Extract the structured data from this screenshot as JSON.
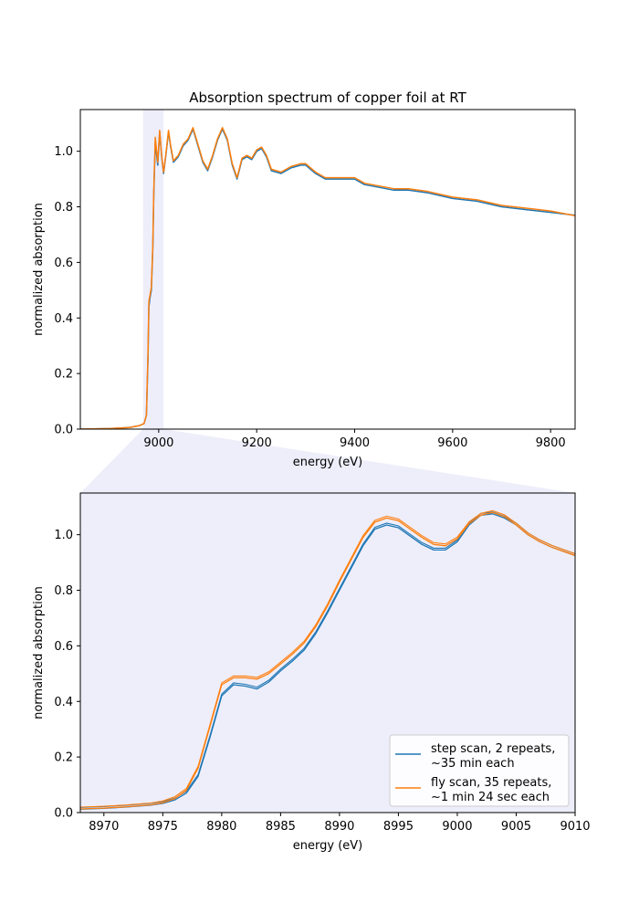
{
  "colors": {
    "step": "#1f77b4",
    "fly": "#ff7f0e",
    "zoom_region": "#eeeefb"
  },
  "chart_data": [
    {
      "type": "line",
      "title": "Absorption spectrum of copper foil at RT",
      "xlabel": "energy (eV)",
      "ylabel": "normalized absorption",
      "xlim": [
        8840,
        9850
      ],
      "ylim": [
        0,
        1.15
      ],
      "xticks": [
        9000,
        9200,
        9400,
        9600,
        9800
      ],
      "yticks": [
        0.0,
        0.2,
        0.4,
        0.6,
        0.8,
        1.0
      ],
      "xtick_labels": [
        "9000",
        "9200",
        "9400",
        "9600",
        "9800"
      ],
      "ytick_labels": [
        "0.0",
        "0.2",
        "0.4",
        "0.6",
        "0.8",
        "1.0"
      ],
      "grid": false,
      "highlight_span": [
        8968,
        9010
      ],
      "series": [
        {
          "name": "step scan, 2 repeats, ~35 min each",
          "color": "step",
          "x": [
            8840,
            8900,
            8940,
            8960,
            8970,
            8975,
            8978,
            8980,
            8982,
            8985,
            8988,
            8990,
            8993,
            8998,
            9002,
            9006,
            9010,
            9015,
            9020,
            9024,
            9030,
            9040,
            9050,
            9060,
            9070,
            9080,
            9090,
            9100,
            9110,
            9120,
            9130,
            9140,
            9150,
            9160,
            9170,
            9180,
            9190,
            9200,
            9210,
            9220,
            9230,
            9250,
            9270,
            9290,
            9300,
            9320,
            9340,
            9360,
            9380,
            9400,
            9420,
            9450,
            9480,
            9510,
            9550,
            9600,
            9650,
            9700,
            9750,
            9800,
            9850
          ],
          "y": [
            0.0,
            0.002,
            0.006,
            0.012,
            0.02,
            0.05,
            0.25,
            0.44,
            0.47,
            0.5,
            0.65,
            0.85,
            1.03,
            0.95,
            1.07,
            0.98,
            0.92,
            0.99,
            1.07,
            1.02,
            0.96,
            0.98,
            1.02,
            1.04,
            1.08,
            1.02,
            0.96,
            0.93,
            0.98,
            1.04,
            1.08,
            1.04,
            0.95,
            0.9,
            0.97,
            0.98,
            0.97,
            1.0,
            1.01,
            0.98,
            0.93,
            0.92,
            0.94,
            0.95,
            0.95,
            0.92,
            0.9,
            0.9,
            0.9,
            0.9,
            0.88,
            0.87,
            0.86,
            0.86,
            0.85,
            0.83,
            0.82,
            0.8,
            0.79,
            0.78,
            0.77
          ]
        },
        {
          "name": "fly scan, 35 repeats, ~1 min 24 sec each",
          "color": "fly",
          "x": [
            8840,
            8900,
            8940,
            8960,
            8970,
            8975,
            8978,
            8980,
            8982,
            8985,
            8988,
            8990,
            8993,
            8998,
            9002,
            9006,
            9010,
            9015,
            9020,
            9024,
            9030,
            9040,
            9050,
            9060,
            9070,
            9080,
            9090,
            9100,
            9110,
            9120,
            9130,
            9140,
            9150,
            9160,
            9170,
            9180,
            9190,
            9200,
            9210,
            9220,
            9230,
            9250,
            9270,
            9290,
            9300,
            9320,
            9340,
            9360,
            9380,
            9400,
            9420,
            9450,
            9480,
            9510,
            9550,
            9600,
            9650,
            9700,
            9750,
            9800,
            9850
          ],
          "y": [
            0.0,
            0.002,
            0.006,
            0.012,
            0.02,
            0.05,
            0.27,
            0.46,
            0.48,
            0.51,
            0.66,
            0.86,
            1.05,
            0.96,
            1.075,
            0.985,
            0.925,
            0.995,
            1.075,
            1.025,
            0.965,
            0.985,
            1.025,
            1.045,
            1.085,
            1.025,
            0.965,
            0.935,
            0.985,
            1.045,
            1.085,
            1.045,
            0.955,
            0.905,
            0.975,
            0.985,
            0.975,
            1.005,
            1.015,
            0.985,
            0.935,
            0.925,
            0.945,
            0.955,
            0.955,
            0.925,
            0.905,
            0.905,
            0.905,
            0.905,
            0.885,
            0.875,
            0.865,
            0.865,
            0.855,
            0.835,
            0.825,
            0.805,
            0.795,
            0.785,
            0.768
          ]
        }
      ]
    },
    {
      "type": "line",
      "title": "",
      "xlabel": "energy (eV)",
      "ylabel": "normalized absorption",
      "xlim": [
        8968,
        9010
      ],
      "ylim": [
        0,
        1.15
      ],
      "xticks": [
        8970,
        8975,
        8980,
        8985,
        8990,
        8995,
        9000,
        9005,
        9010
      ],
      "yticks": [
        0.0,
        0.2,
        0.4,
        0.6,
        0.8,
        1.0
      ],
      "xtick_labels": [
        "8970",
        "8975",
        "8980",
        "8985",
        "8990",
        "8995",
        "9000",
        "9005",
        "9010"
      ],
      "ytick_labels": [
        "0.0",
        "0.2",
        "0.4",
        "0.6",
        "0.8",
        "1.0"
      ],
      "grid": false,
      "legend_position": "lower-right",
      "series": [
        {
          "name": "step scan, 2 repeats, ~35 min each",
          "color": "step",
          "x": [
            8968,
            8970,
            8972,
            8974,
            8975,
            8976,
            8977,
            8978,
            8979,
            8980,
            8981,
            8982,
            8983,
            8984,
            8985,
            8986,
            8987,
            8988,
            8989,
            8990,
            8991,
            8992,
            8993,
            8994,
            8995,
            8996,
            8997,
            8998,
            8999,
            9000,
            9001,
            9002,
            9003,
            9004,
            9005,
            9006,
            9007,
            9008,
            9009,
            9010
          ],
          "y": [
            0.012,
            0.015,
            0.02,
            0.027,
            0.033,
            0.045,
            0.07,
            0.13,
            0.27,
            0.42,
            0.46,
            0.455,
            0.445,
            0.47,
            0.51,
            0.545,
            0.585,
            0.645,
            0.72,
            0.8,
            0.88,
            0.96,
            1.02,
            1.035,
            1.025,
            0.995,
            0.965,
            0.945,
            0.945,
            0.975,
            1.035,
            1.07,
            1.075,
            1.06,
            1.035,
            1.0,
            0.975,
            0.955,
            0.94,
            0.925
          ]
        },
        {
          "name": "fly scan, 35 repeats, ~1 min 24 sec each",
          "color": "fly",
          "x": [
            8968,
            8970,
            8972,
            8974,
            8975,
            8976,
            8977,
            8978,
            8979,
            8980,
            8981,
            8982,
            8983,
            8984,
            8985,
            8986,
            8987,
            8988,
            8989,
            8990,
            8991,
            8992,
            8993,
            8994,
            8995,
            8996,
            8997,
            8998,
            8999,
            9000,
            9001,
            9002,
            9003,
            9004,
            9005,
            9006,
            9007,
            9008,
            9009,
            9010
          ],
          "y": [
            0.013,
            0.016,
            0.021,
            0.028,
            0.035,
            0.05,
            0.08,
            0.16,
            0.31,
            0.46,
            0.485,
            0.485,
            0.48,
            0.5,
            0.535,
            0.57,
            0.61,
            0.67,
            0.745,
            0.83,
            0.91,
            0.99,
            1.045,
            1.06,
            1.05,
            1.02,
            0.99,
            0.965,
            0.96,
            0.985,
            1.04,
            1.07,
            1.08,
            1.065,
            1.035,
            1.0,
            0.975,
            0.955,
            0.94,
            0.925
          ]
        }
      ],
      "legend": [
        {
          "label_lines": [
            "step scan, 2 repeats,",
            "~35 min each"
          ],
          "color": "step"
        },
        {
          "label_lines": [
            "fly scan, 35 repeats,",
            "~1 min 24 sec each"
          ],
          "color": "fly"
        }
      ]
    }
  ]
}
